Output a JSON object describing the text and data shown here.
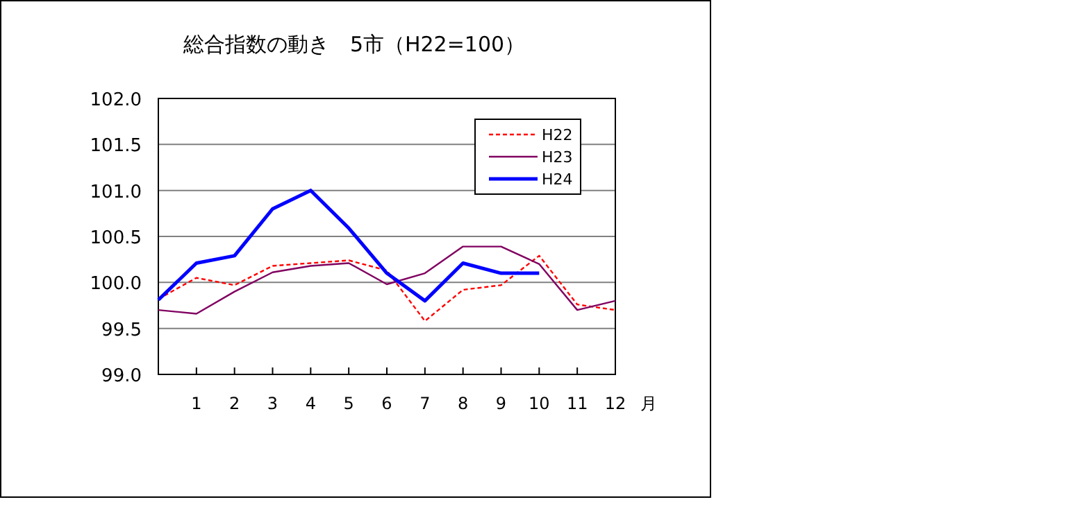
{
  "chart_data": {
    "type": "line",
    "title": "総合指数の動き　5市（H22=100）",
    "xlabel": "月",
    "x": [
      0,
      1,
      2,
      3,
      4,
      5,
      6,
      7,
      8,
      9,
      10,
      11,
      12
    ],
    "series": [
      {
        "name": "H22",
        "color": "#ff0000",
        "line_style": "dashed",
        "values": [
          99.82,
          100.05,
          99.97,
          100.18,
          100.21,
          100.24,
          100.13,
          99.58,
          99.92,
          99.97,
          100.29,
          99.76,
          99.7
        ]
      },
      {
        "name": "H23",
        "color": "#800060",
        "line_style": "solid",
        "values": [
          99.7,
          99.66,
          99.9,
          100.11,
          100.18,
          100.21,
          99.98,
          100.1,
          100.39,
          100.39,
          100.2,
          99.7,
          99.8
        ]
      },
      {
        "name": "H24",
        "color": "#0000ff",
        "line_style": "solid",
        "values": [
          99.81,
          100.21,
          100.29,
          100.8,
          101.0,
          100.59,
          100.1,
          99.8,
          100.21,
          100.1,
          100.1,
          null,
          null
        ]
      }
    ],
    "xlim": [
      0,
      12
    ],
    "xticks": [
      1,
      2,
      3,
      4,
      5,
      6,
      7,
      8,
      9,
      10,
      11,
      12
    ],
    "ylim": [
      99,
      102
    ],
    "yticks": [
      {
        "value": 99,
        "label": "99.0"
      },
      {
        "value": 99.5,
        "label": "99.5"
      },
      {
        "value": 100,
        "label": "100.0"
      },
      {
        "value": 100.5,
        "label": "100.5"
      },
      {
        "value": 101,
        "label": "101.0"
      },
      {
        "value": 101.5,
        "label": "101.5"
      },
      {
        "value": 102,
        "label": "102.0"
      }
    ],
    "grid": "y",
    "legend": "top right"
  }
}
